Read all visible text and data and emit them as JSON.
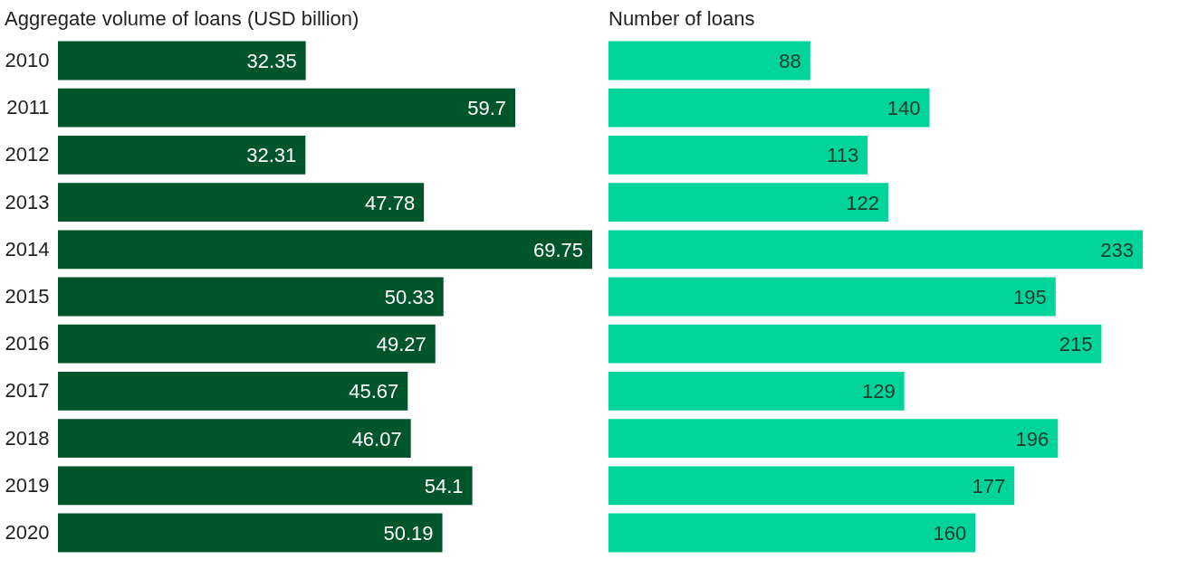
{
  "chart_data": [
    {
      "type": "bar",
      "orientation": "horizontal",
      "title": "Aggregate volume of loans (USD billion)",
      "categories": [
        "2010",
        "2011",
        "2012",
        "2013",
        "2014",
        "2015",
        "2016",
        "2017",
        "2018",
        "2019",
        "2020"
      ],
      "values": [
        32.35,
        59.7,
        32.31,
        47.78,
        69.75,
        50.33,
        49.27,
        45.67,
        46.07,
        54.1,
        50.19
      ],
      "color": "#00552b",
      "data_labels": true,
      "tick_labels": "y"
    },
    {
      "type": "bar",
      "orientation": "horizontal",
      "title": "Number of loans",
      "categories": [
        "2010",
        "2011",
        "2012",
        "2013",
        "2014",
        "2015",
        "2016",
        "2017",
        "2018",
        "2019",
        "2020"
      ],
      "values": [
        88,
        140,
        113,
        122,
        233,
        195,
        215,
        129,
        196,
        177,
        160
      ],
      "color": "#00d49a",
      "data_labels": true,
      "tick_labels": false
    }
  ]
}
